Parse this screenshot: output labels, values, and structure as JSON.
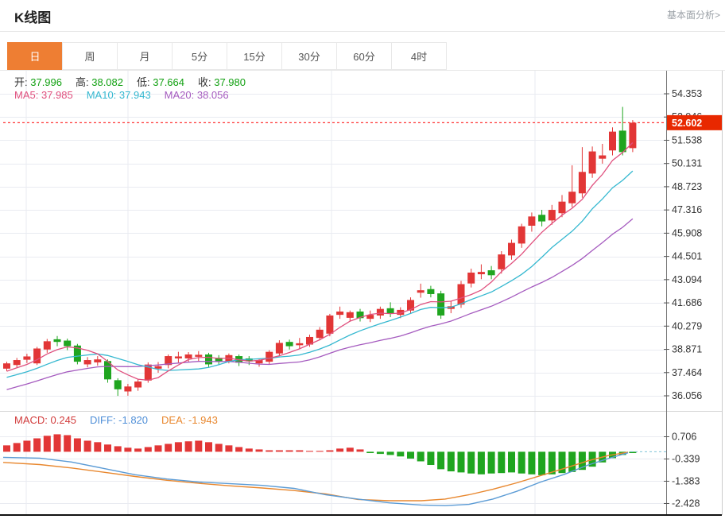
{
  "page": {
    "title": "K线图",
    "fundamental_link": "基本面分析>"
  },
  "tabs": [
    {
      "key": "day",
      "label": "日",
      "active": true
    },
    {
      "key": "week",
      "label": "周",
      "active": false
    },
    {
      "key": "month",
      "label": "月",
      "active": false
    },
    {
      "key": "5min",
      "label": "5分",
      "active": false
    },
    {
      "key": "15min",
      "label": "15分",
      "active": false
    },
    {
      "key": "30min",
      "label": "30分",
      "active": false
    },
    {
      "key": "60min",
      "label": "60分",
      "active": false
    },
    {
      "key": "4hour",
      "label": "4时",
      "active": false
    }
  ],
  "info": {
    "ohlc": [
      {
        "label": "开:",
        "value": "37.996"
      },
      {
        "label": "高:",
        "value": "38.082"
      },
      {
        "label": "低:",
        "value": "37.664"
      },
      {
        "label": "收:",
        "value": "37.980"
      }
    ],
    "ma": [
      {
        "label": "MA5:",
        "value": "37.985",
        "color": "#e0507e"
      },
      {
        "label": "MA10:",
        "value": "37.943",
        "color": "#35b8d0"
      },
      {
        "label": "MA20:",
        "value": "38.056",
        "color": "#a55bbf"
      }
    ],
    "macd": [
      {
        "label": "MACD:",
        "value": "0.245",
        "color": "#d23c3c"
      },
      {
        "label": "DIFF:",
        "value": "-1.820",
        "color": "#4f8fd8"
      },
      {
        "label": "DEA:",
        "value": "-1.943",
        "color": "#e8872e"
      }
    ]
  },
  "colors": {
    "candle_up": "#e23636",
    "candle_down": "#1fa51f",
    "ma5": "#e0507e",
    "ma10": "#35b8d0",
    "ma20": "#a55bbf",
    "diff_line": "#5b9bd5",
    "dea_line": "#e8872e",
    "tab_active_bg": "#ee7e33",
    "badge_bg": "#e82800",
    "current_price_line": "#ff3333",
    "zero_dash_line": "#7fc4d8",
    "grid": "#e9ebf1",
    "axis_line": "#777777",
    "axis_text": "#333333",
    "ohlc_value": "#12a112"
  },
  "chart_data": {
    "type": "candlestick+macd",
    "title": "K线图 daily candlestick with MACD",
    "legend_position": "top-left overlay",
    "grid": true,
    "x_axis_labels": [],
    "main": {
      "y_axis_labels": [
        54.353,
        52.946,
        51.538,
        50.131,
        48.723,
        47.316,
        45.908,
        44.501,
        43.094,
        41.686,
        40.279,
        38.871,
        37.464,
        36.056
      ],
      "current_price": 52.602,
      "current_price_label": "52.602",
      "ma_seed": [
        34.6,
        34.8,
        35.0,
        35.2,
        35.4,
        35.6,
        35.8,
        36.0,
        36.2,
        36.4,
        36.5,
        36.6,
        36.7,
        36.8,
        36.9,
        37.0,
        37.2,
        37.4,
        37.5,
        37.6
      ],
      "candles_format": [
        "open",
        "close",
        "low",
        "high"
      ],
      "candles": [
        [
          37.7,
          38.02,
          37.55,
          38.12
        ],
        [
          37.92,
          38.22,
          37.78,
          38.35
        ],
        [
          38.24,
          38.44,
          38.04,
          38.6
        ],
        [
          38.02,
          38.92,
          37.92,
          39.02
        ],
        [
          38.86,
          39.36,
          38.66,
          39.5
        ],
        [
          39.48,
          39.32,
          39.06,
          39.68
        ],
        [
          39.4,
          39.06,
          38.82,
          39.52
        ],
        [
          39.1,
          38.12,
          37.96,
          39.2
        ],
        [
          37.96,
          38.22,
          37.78,
          38.4
        ],
        [
          38.08,
          38.26,
          37.88,
          38.46
        ],
        [
          38.16,
          37.05,
          36.85,
          38.26
        ],
        [
          37.0,
          36.45,
          36.05,
          37.12
        ],
        [
          36.32,
          36.62,
          36.06,
          36.78
        ],
        [
          36.56,
          36.92,
          36.36,
          37.06
        ],
        [
          36.98,
          37.95,
          36.85,
          38.08
        ],
        [
          37.7,
          37.85,
          37.45,
          38.1
        ],
        [
          37.92,
          38.46,
          37.72,
          38.56
        ],
        [
          38.32,
          38.44,
          38.06,
          38.72
        ],
        [
          38.32,
          38.56,
          38.12,
          38.7
        ],
        [
          38.42,
          38.54,
          38.16,
          38.76
        ],
        [
          38.56,
          37.96,
          37.8,
          38.66
        ],
        [
          38.36,
          38.1,
          37.96,
          38.52
        ],
        [
          38.16,
          38.52,
          38.02,
          38.62
        ],
        [
          38.46,
          38.06,
          37.86,
          38.56
        ],
        [
          38.32,
          38.14,
          37.92,
          38.46
        ],
        [
          38.02,
          38.22,
          37.82,
          38.32
        ],
        [
          38.12,
          38.72,
          37.96,
          38.82
        ],
        [
          38.62,
          39.26,
          38.46,
          39.42
        ],
        [
          39.32,
          39.06,
          38.86,
          39.46
        ],
        [
          39.12,
          39.24,
          38.92,
          39.56
        ],
        [
          39.16,
          39.62,
          39.02,
          39.76
        ],
        [
          39.56,
          40.06,
          39.42,
          40.22
        ],
        [
          39.82,
          40.92,
          39.66,
          41.02
        ],
        [
          40.96,
          41.16,
          40.72,
          41.46
        ],
        [
          40.78,
          41.12,
          40.58,
          41.22
        ],
        [
          41.16,
          40.76,
          40.56,
          41.32
        ],
        [
          40.72,
          40.96,
          40.52,
          41.22
        ],
        [
          40.92,
          41.32,
          40.72,
          41.46
        ],
        [
          41.36,
          41.02,
          40.82,
          41.72
        ],
        [
          40.96,
          41.26,
          40.76,
          41.42
        ],
        [
          41.22,
          41.86,
          41.02,
          42.02
        ],
        [
          42.3,
          42.45,
          42.0,
          42.85
        ],
        [
          42.52,
          42.22,
          42.02,
          42.72
        ],
        [
          42.26,
          40.92,
          40.72,
          42.42
        ],
        [
          41.32,
          41.48,
          41.06,
          41.82
        ],
        [
          41.58,
          42.82,
          41.38,
          43.02
        ],
        [
          42.86,
          43.52,
          42.62,
          43.76
        ],
        [
          43.42,
          43.56,
          43.12,
          44.02
        ],
        [
          43.66,
          43.36,
          43.12,
          43.92
        ],
        [
          43.72,
          44.62,
          43.46,
          44.82
        ],
        [
          44.56,
          45.32,
          44.3,
          45.52
        ],
        [
          45.28,
          46.32,
          45.02,
          46.48
        ],
        [
          46.36,
          46.92,
          46.0,
          47.16
        ],
        [
          47.02,
          46.62,
          46.32,
          47.32
        ],
        [
          46.68,
          47.32,
          46.42,
          47.62
        ],
        [
          47.12,
          47.82,
          46.88,
          48.22
        ],
        [
          47.72,
          48.42,
          47.48,
          50.02
        ],
        [
          48.32,
          49.62,
          48.06,
          51.12
        ],
        [
          49.52,
          50.86,
          49.26,
          51.16
        ],
        [
          50.42,
          50.62,
          50.12,
          51.32
        ],
        [
          50.92,
          52.06,
          50.62,
          52.32
        ],
        [
          52.12,
          50.82,
          50.62,
          53.56
        ],
        [
          51.06,
          52.6,
          50.82,
          52.76
        ]
      ]
    },
    "macd": {
      "y_axis_labels": [
        0.706,
        -0.339,
        -1.383,
        -2.428
      ],
      "histogram": [
        0.3,
        0.41,
        0.52,
        0.63,
        0.75,
        0.82,
        0.78,
        0.63,
        0.52,
        0.45,
        0.34,
        0.26,
        0.19,
        0.15,
        0.22,
        0.3,
        0.37,
        0.45,
        0.49,
        0.52,
        0.45,
        0.37,
        0.3,
        0.22,
        0.15,
        0.11,
        0.07,
        0.07,
        0.07,
        0.07,
        0.04,
        0.04,
        0.07,
        0.15,
        0.19,
        0.11,
        -0.06,
        -0.1,
        -0.15,
        -0.22,
        -0.32,
        -0.45,
        -0.62,
        -0.82,
        -0.92,
        -0.97,
        -1.02,
        -1.06,
        -1.02,
        -1.0,
        -0.97,
        -1.02,
        -1.06,
        -1.1,
        -1.06,
        -1.0,
        -0.95,
        -0.85,
        -0.7,
        -0.5,
        -0.3,
        -0.15,
        -0.06
      ],
      "diff_points": [
        [
          4,
          -0.26
        ],
        [
          50,
          -0.3
        ],
        [
          90,
          -0.48
        ],
        [
          130,
          -0.78
        ],
        [
          170,
          -1.08
        ],
        [
          210,
          -1.28
        ],
        [
          250,
          -1.42
        ],
        [
          290,
          -1.5
        ],
        [
          330,
          -1.58
        ],
        [
          370,
          -1.72
        ],
        [
          410,
          -2.02
        ],
        [
          450,
          -2.22
        ],
        [
          490,
          -2.4
        ],
        [
          530,
          -2.5
        ],
        [
          560,
          -2.53
        ],
        [
          590,
          -2.47
        ],
        [
          620,
          -2.22
        ],
        [
          650,
          -1.86
        ],
        [
          680,
          -1.42
        ],
        [
          710,
          -1.06
        ],
        [
          740,
          -0.62
        ],
        [
          765,
          -0.32
        ],
        [
          790,
          -0.05
        ]
      ],
      "dea_points": [
        [
          4,
          -0.5
        ],
        [
          50,
          -0.6
        ],
        [
          90,
          -0.76
        ],
        [
          130,
          -0.96
        ],
        [
          170,
          -1.16
        ],
        [
          210,
          -1.34
        ],
        [
          250,
          -1.48
        ],
        [
          290,
          -1.6
        ],
        [
          330,
          -1.7
        ],
        [
          370,
          -1.82
        ],
        [
          410,
          -1.98
        ],
        [
          450,
          -2.24
        ],
        [
          490,
          -2.3
        ],
        [
          530,
          -2.3
        ],
        [
          560,
          -2.22
        ],
        [
          590,
          -2.02
        ],
        [
          620,
          -1.76
        ],
        [
          650,
          -1.46
        ],
        [
          680,
          -1.12
        ],
        [
          710,
          -0.78
        ],
        [
          740,
          -0.42
        ],
        [
          765,
          -0.18
        ],
        [
          790,
          -0.02
        ]
      ]
    }
  }
}
